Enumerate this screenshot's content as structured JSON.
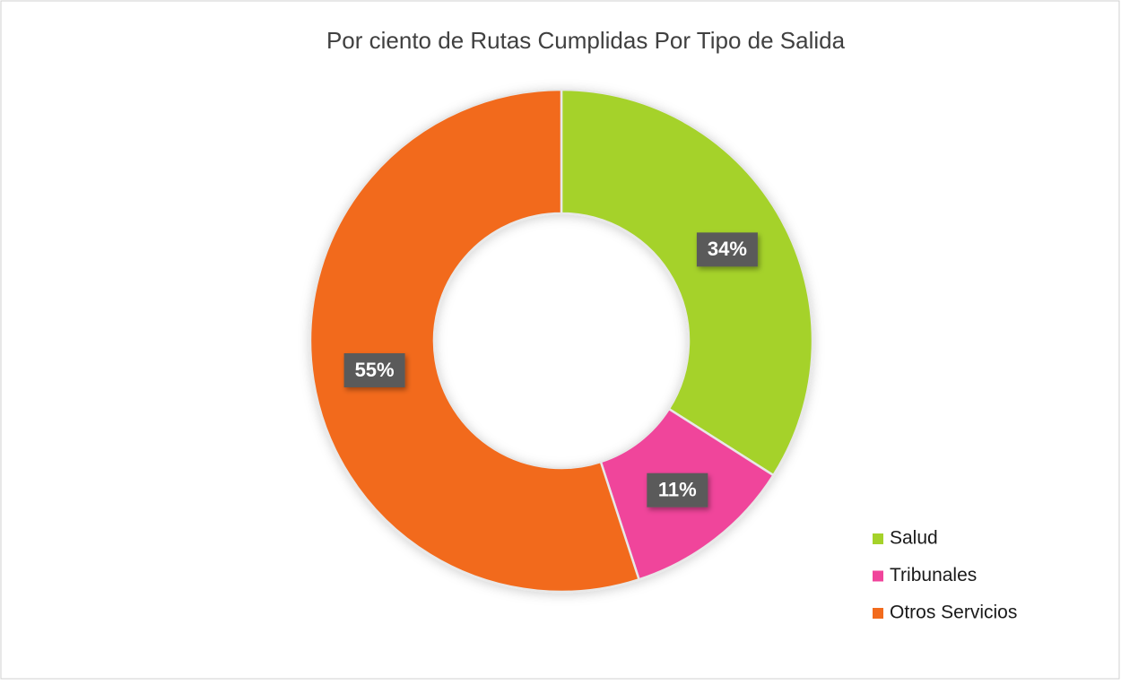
{
  "chart_data": {
    "type": "donut",
    "title": "Por ciento de Rutas Cumplidas Por Tipo de Salida",
    "categories": [
      "Salud",
      "Tribunales",
      "Otros Servicios"
    ],
    "values": [
      34,
      11,
      55
    ],
    "value_labels": [
      "34%",
      "11%",
      "55%"
    ],
    "colors": [
      "#a5d22a",
      "#f0449b",
      "#f26b1d"
    ],
    "legend": "right"
  }
}
